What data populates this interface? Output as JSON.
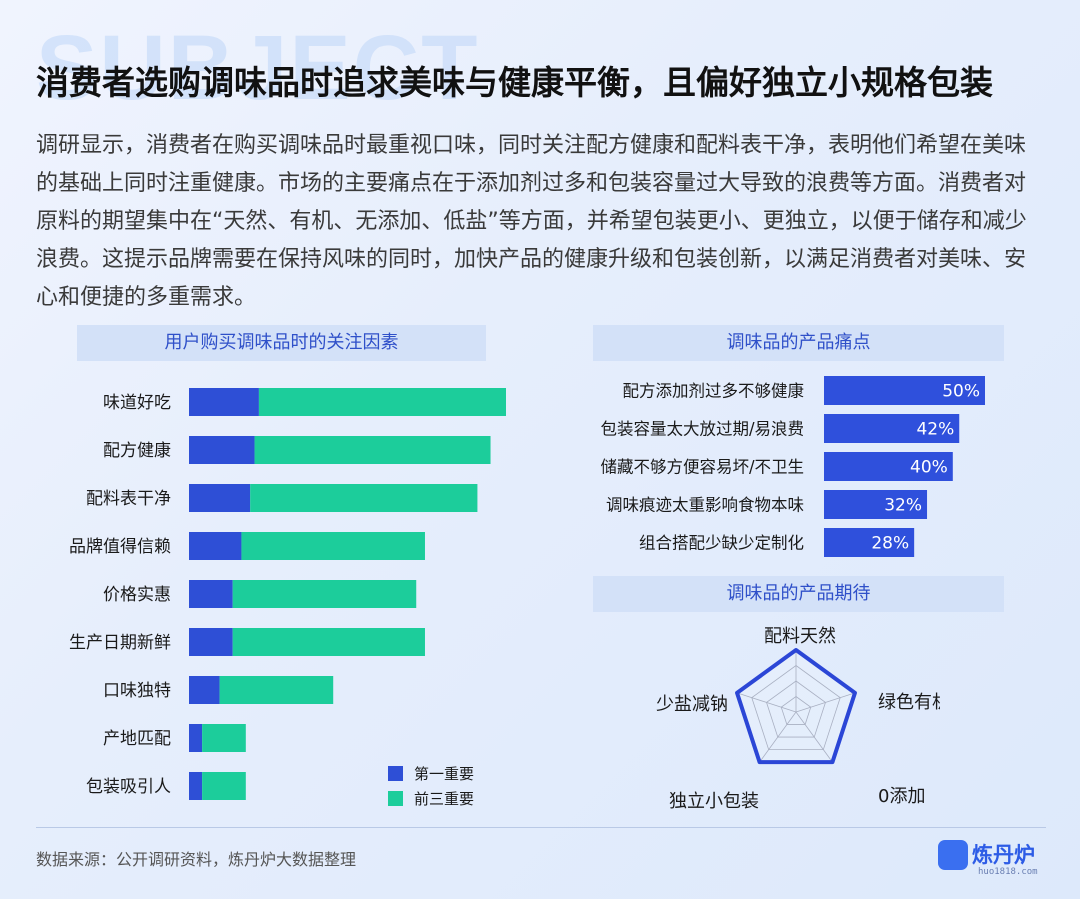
{
  "watermark": "SUBJECT",
  "title": "消费者选购调味品时追求美味与健康平衡，且偏好独立小规格包装",
  "intro": "调研显示，消费者在购买调味品时最重视口味，同时关注配方健康和配料表干净，表明他们希望在美味的基础上同时注重健康。市场的主要痛点在于添加剂过多和包装容量过大导致的浪费等方面。消费者对原料的期望集中在“天然、有机、无添加、低盐”等方面，并希望包装更小、更独立，以便于储存和减少浪费。这提示品牌需要在保持风味的同时，加快产品的健康升级和包装创新，以满足消费者对美味、安心和便捷的多重需求。",
  "colors": {
    "first": "#2e4fd6",
    "top3": "#1ccd9b",
    "pain_bar": "#2f50dc",
    "radar_line": "#2b46d6",
    "header_bg": "#d3e1f8",
    "header_text": "#2f50c9"
  },
  "chart_data": [
    {
      "type": "bar",
      "orientation": "horizontal",
      "stacked": true,
      "title": "用户购买调味品时的关注因素",
      "categories": [
        "味道好吃",
        "配方健康",
        "配料表干净",
        "品牌值得信赖",
        "价格实惠",
        "生产日期新鲜",
        "口味独特",
        "产地匹配",
        "包装吸引人"
      ],
      "series": [
        {
          "name": "第一重要",
          "values": [
            16,
            15,
            14,
            12,
            10,
            10,
            7,
            3,
            3
          ]
        },
        {
          "name": "前三重要",
          "values": [
            58,
            54,
            52,
            42,
            42,
            44,
            26,
            10,
            10
          ]
        }
      ],
      "legend_position": "bottom-right"
    },
    {
      "type": "bar",
      "orientation": "horizontal",
      "title": "调味品的产品痛点",
      "categories": [
        "配方添加剂过多不够健康",
        "包装容量太大放过期/易浪费",
        "储藏不够方便容易坏/不卫生",
        "调味痕迹太重影响食物本味",
        "组合搭配少缺少定制化"
      ],
      "values": [
        50,
        42,
        40,
        32,
        28
      ],
      "value_labels": [
        "50%",
        "42%",
        "40%",
        "32%",
        "28%"
      ]
    },
    {
      "type": "radar",
      "title": "调味品的产品期待",
      "axes": [
        "配料天然",
        "绿色有机",
        "0添加",
        "独立小包装",
        "少盐减钠"
      ],
      "values": [
        1,
        1,
        1,
        1,
        1
      ],
      "levels": 4
    }
  ],
  "footer": {
    "source": "数据来源：公开调研资料，炼丹炉大数据整理",
    "brand": "炼丹炉",
    "brand_url": "huo1818.com"
  }
}
